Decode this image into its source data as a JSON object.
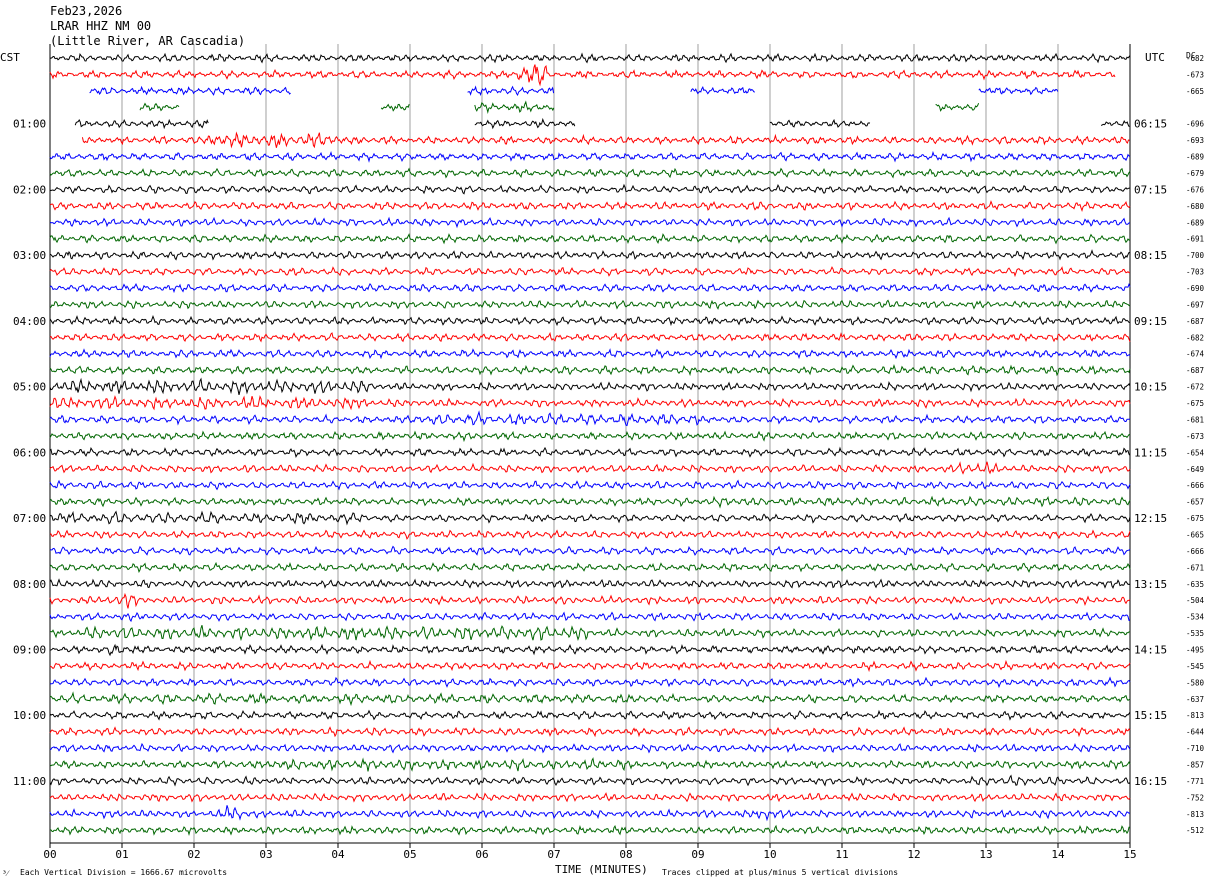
{
  "header": {
    "date": "Feb23,2026",
    "station": "LRAR HHZ NM 00",
    "location": "(Little River, AR Cascadia)"
  },
  "axis_labels": {
    "left_tz": "CST",
    "right_tz": "UTC",
    "dc": "DC",
    "x_title": "TIME (MINUTES)"
  },
  "footer": {
    "left_mark": "³⁄",
    "scale": "Each Vertical Division = 1666.67 microvolts",
    "clip_note": "Traces clipped at plus/minus 5 vertical divisions"
  },
  "colors": {
    "black": "#000000",
    "red": "#ff0000",
    "blue": "#0000ff",
    "green": "#006600",
    "grid": "#888888"
  },
  "chart_data": {
    "type": "helicorder",
    "xlabel": "TIME (MINUTES)",
    "xlim": [
      0,
      15
    ],
    "x_ticks": [
      "00",
      "01",
      "02",
      "03",
      "04",
      "05",
      "06",
      "07",
      "08",
      "09",
      "10",
      "11",
      "12",
      "13",
      "14",
      "15"
    ],
    "minutes_per_line": 15,
    "color_cycle": [
      "black",
      "red",
      "blue",
      "green"
    ],
    "left_time_labels": [
      "01:00",
      "02:00",
      "03:00",
      "04:00",
      "05:00",
      "06:00",
      "07:00",
      "08:00",
      "09:00",
      "10:00",
      "11:00"
    ],
    "right_time_labels": [
      "06:15",
      "07:15",
      "08:15",
      "09:15",
      "10:15",
      "11:15",
      "12:15",
      "13:15",
      "14:15",
      "15:15",
      "16:15"
    ],
    "time_label_every_n_lines": 4,
    "time_label_first_line": 4,
    "dc_values": [
      "-682",
      "-673",
      "-665",
      "",
      "-696",
      "-693",
      "-689",
      "-679",
      "-676",
      "-680",
      "-689",
      "-691",
      "-700",
      "-703",
      "-690",
      "-697",
      "-687",
      "-682",
      "-674",
      "-687",
      "-672",
      "-675",
      "-681",
      "-673",
      "-654",
      "-649",
      "-666",
      "-657",
      "-675",
      "-665",
      "-666",
      "-671",
      "-635",
      "-504",
      "-534",
      "-535",
      "-495",
      "-545",
      "-580",
      "-637",
      "-813",
      "-644",
      "-710",
      "-857",
      "-771",
      "-752",
      "-813",
      "-512"
    ],
    "lines": [
      {
        "segments": [
          [
            0,
            15
          ]
        ],
        "events": []
      },
      {
        "segments": [
          [
            0,
            14.8
          ]
        ],
        "events": [
          {
            "start": 6.5,
            "end": 6.9,
            "amp": 3.5
          }
        ]
      },
      {
        "segments": [
          [
            0.55,
            3.35
          ],
          [
            5.8,
            7.0
          ],
          [
            8.9,
            9.8
          ],
          [
            12.9,
            14.0
          ]
        ],
        "events": []
      },
      {
        "segments": [
          [
            1.25,
            1.8
          ],
          [
            4.6,
            5.0
          ],
          [
            5.9,
            7.0
          ],
          [
            12.3,
            12.9
          ]
        ],
        "events": [
          {
            "start": 5.9,
            "end": 7.0,
            "amp": 1.2
          }
        ]
      },
      {
        "segments": [
          [
            0.35,
            2.2
          ],
          [
            5.9,
            7.3
          ],
          [
            10.0,
            11.4
          ],
          [
            14.6,
            15
          ]
        ],
        "events": []
      },
      {
        "segments": [
          [
            0.45,
            15
          ]
        ],
        "events": [
          {
            "start": 2.2,
            "end": 4.0,
            "amp": 2.0
          }
        ]
      },
      {
        "segments": [
          [
            0,
            15
          ]
        ],
        "events": []
      },
      {
        "segments": [
          [
            0,
            15
          ]
        ],
        "events": []
      },
      {
        "segments": [
          [
            0,
            15
          ]
        ],
        "events": []
      },
      {
        "segments": [
          [
            0,
            15
          ]
        ],
        "events": []
      },
      {
        "segments": [
          [
            0,
            15
          ]
        ],
        "events": []
      },
      {
        "segments": [
          [
            0,
            15
          ]
        ],
        "events": []
      },
      {
        "segments": [
          [
            0,
            15
          ]
        ],
        "events": []
      },
      {
        "segments": [
          [
            0,
            15
          ]
        ],
        "events": []
      },
      {
        "segments": [
          [
            0,
            15
          ]
        ],
        "events": []
      },
      {
        "segments": [
          [
            0,
            15
          ]
        ],
        "events": []
      },
      {
        "segments": [
          [
            0,
            15
          ]
        ],
        "events": []
      },
      {
        "segments": [
          [
            0,
            15
          ]
        ],
        "events": []
      },
      {
        "segments": [
          [
            0,
            15
          ]
        ],
        "events": []
      },
      {
        "segments": [
          [
            0,
            15
          ]
        ],
        "events": [
          {
            "start": 11.5,
            "end": 15,
            "amp": 1.2
          }
        ]
      },
      {
        "segments": [
          [
            0,
            15
          ]
        ],
        "events": [
          {
            "start": 0,
            "end": 4.5,
            "amp": 1.8
          }
        ]
      },
      {
        "segments": [
          [
            0,
            15
          ]
        ],
        "events": [
          {
            "start": 0,
            "end": 4.5,
            "amp": 1.6
          }
        ]
      },
      {
        "segments": [
          [
            0,
            15
          ]
        ],
        "events": [
          {
            "start": 5.0,
            "end": 9.0,
            "amp": 1.6
          }
        ]
      },
      {
        "segments": [
          [
            0,
            15
          ]
        ],
        "events": []
      },
      {
        "segments": [
          [
            0,
            15
          ]
        ],
        "events": []
      },
      {
        "segments": [
          [
            0,
            15
          ]
        ],
        "events": [
          {
            "start": 12.6,
            "end": 13.2,
            "amp": 1.8
          }
        ]
      },
      {
        "segments": [
          [
            0,
            15
          ]
        ],
        "events": []
      },
      {
        "segments": [
          [
            0,
            15
          ]
        ],
        "events": [
          {
            "start": 9.0,
            "end": 15,
            "amp": 1.2
          }
        ]
      },
      {
        "segments": [
          [
            0,
            15
          ]
        ],
        "events": [
          {
            "start": 0,
            "end": 4.5,
            "amp": 1.5
          }
        ]
      },
      {
        "segments": [
          [
            0,
            15
          ]
        ],
        "events": []
      },
      {
        "segments": [
          [
            0,
            15
          ]
        ],
        "events": []
      },
      {
        "segments": [
          [
            0,
            15
          ]
        ],
        "events": []
      },
      {
        "segments": [
          [
            0,
            15
          ]
        ],
        "events": []
      },
      {
        "segments": [
          [
            0,
            15
          ]
        ],
        "events": [
          {
            "start": 0.8,
            "end": 1.2,
            "amp": 2.0
          }
        ]
      },
      {
        "segments": [
          [
            0,
            15
          ]
        ],
        "events": []
      },
      {
        "segments": [
          [
            0,
            15
          ]
        ],
        "events": [
          {
            "start": 0.5,
            "end": 7.5,
            "amp": 1.8
          }
        ]
      },
      {
        "segments": [
          [
            0,
            15
          ]
        ],
        "events": [
          {
            "start": 0.8,
            "end": 1.2,
            "amp": 1.6
          }
        ]
      },
      {
        "segments": [
          [
            0,
            15
          ]
        ],
        "events": []
      },
      {
        "segments": [
          [
            0,
            15
          ]
        ],
        "events": []
      },
      {
        "segments": [
          [
            0,
            15
          ]
        ],
        "events": [
          {
            "start": 0,
            "end": 8.5,
            "amp": 1.3
          }
        ]
      },
      {
        "segments": [
          [
            0,
            15
          ]
        ],
        "events": []
      },
      {
        "segments": [
          [
            0,
            15
          ]
        ],
        "events": []
      },
      {
        "segments": [
          [
            0,
            15
          ]
        ],
        "events": []
      },
      {
        "segments": [
          [
            0,
            15
          ]
        ],
        "events": [
          {
            "start": 3.0,
            "end": 8.0,
            "amp": 1.5
          }
        ]
      },
      {
        "segments": [
          [
            0,
            15
          ]
        ],
        "events": [
          {
            "start": 12.8,
            "end": 14.0,
            "amp": 1.3
          }
        ]
      },
      {
        "segments": [
          [
            0,
            15
          ]
        ],
        "events": []
      },
      {
        "segments": [
          [
            0,
            15
          ]
        ],
        "events": [
          {
            "start": 2.45,
            "end": 2.65,
            "amp": 3.0
          },
          {
            "start": 9.8,
            "end": 10.0,
            "amp": 2.5
          }
        ]
      },
      {
        "segments": [
          [
            0,
            15
          ]
        ],
        "events": []
      }
    ]
  }
}
